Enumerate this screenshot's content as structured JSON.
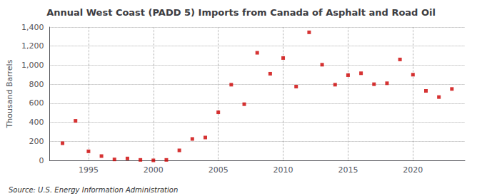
{
  "chart_data": {
    "type": "scatter",
    "title": "Annual West Coast (PADD 5) Imports from Canada of Asphalt and Road Oil",
    "ylabel": "Thousand Barrels",
    "annotation": "Source: U.S. Energy Information Administration",
    "x": [
      1993,
      1994,
      1995,
      1996,
      1997,
      1998,
      1999,
      2000,
      2001,
      2002,
      2003,
      2004,
      2005,
      2006,
      2007,
      2008,
      2009,
      2010,
      2011,
      2012,
      2013,
      2014,
      2015,
      2016,
      2017,
      2018,
      2019,
      2020,
      2021,
      2022,
      2023
    ],
    "values": [
      180,
      415,
      95,
      45,
      10,
      20,
      5,
      0,
      5,
      105,
      225,
      240,
      505,
      795,
      590,
      1130,
      910,
      1075,
      775,
      1345,
      1005,
      795,
      895,
      915,
      800,
      810,
      1060,
      900,
      730,
      665,
      750
    ],
    "color": "#cc0000",
    "marker": "square",
    "xlim": [
      1992,
      2024
    ],
    "xticks": [
      1995,
      2000,
      2005,
      2010,
      2015,
      2020
    ],
    "ylim": [
      0,
      1400
    ],
    "yticks": [
      0,
      200,
      400,
      600,
      800,
      {
        "value": 1000,
        "label": "1,000"
      },
      {
        "value": 1200,
        "label": "1,200"
      },
      {
        "value": 1400,
        "label": "1,400"
      }
    ],
    "grid": true
  }
}
